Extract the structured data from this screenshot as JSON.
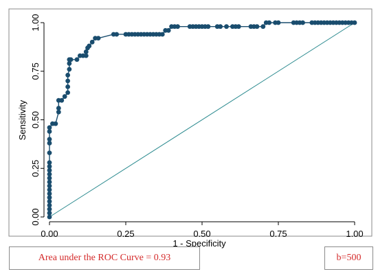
{
  "chart_data": {
    "type": "line",
    "title": "",
    "xlabel": "1 - Specificity",
    "ylabel": "Sensitivity",
    "xlim": [
      0,
      1
    ],
    "ylim": [
      0,
      1
    ],
    "x_ticks": [
      "0.00",
      "0.25",
      "0.50",
      "0.75",
      "1.00"
    ],
    "y_ticks": [
      "0.00",
      "0.25",
      "0.50",
      "0.75",
      "1.00"
    ],
    "grid": false,
    "series": [
      {
        "color": "#1a4d6e",
        "x": [
          0,
          0,
          0,
          0,
          0,
          0,
          0,
          0,
          0,
          0,
          0,
          0,
          0,
          0,
          0,
          0,
          0,
          0,
          0,
          0,
          0.01,
          0.02,
          0.03,
          0.03,
          0.03,
          0.04,
          0.05,
          0.06,
          0.06,
          0.06,
          0.06,
          0.065,
          0.065,
          0.065,
          0.07,
          0.09,
          0.1,
          0.11,
          0.12,
          0.12,
          0.125,
          0.13,
          0.14,
          0.15,
          0.16,
          0.21,
          0.22,
          0.25,
          0.26,
          0.27,
          0.28,
          0.29,
          0.3,
          0.31,
          0.32,
          0.33,
          0.34,
          0.35,
          0.36,
          0.37,
          0.38,
          0.39,
          0.4,
          0.41,
          0.42,
          0.46,
          0.47,
          0.48,
          0.49,
          0.5,
          0.51,
          0.52,
          0.55,
          0.56,
          0.58,
          0.6,
          0.61,
          0.62,
          0.66,
          0.67,
          0.68,
          0.7,
          0.71,
          0.72,
          0.74,
          0.75,
          0.8,
          0.81,
          0.82,
          0.83,
          0.86,
          0.87,
          0.88,
          0.89,
          0.9,
          0.91,
          0.92,
          0.93,
          0.94,
          0.95,
          0.96,
          0.97,
          0.98,
          0.99,
          1.0
        ],
        "y": [
          0,
          0.02,
          0.04,
          0.06,
          0.08,
          0.1,
          0.12,
          0.14,
          0.16,
          0.18,
          0.2,
          0.22,
          0.24,
          0.26,
          0.28,
          0.33,
          0.38,
          0.4,
          0.44,
          0.46,
          0.48,
          0.48,
          0.54,
          0.56,
          0.6,
          0.6,
          0.62,
          0.64,
          0.67,
          0.7,
          0.73,
          0.76,
          0.79,
          0.81,
          0.81,
          0.81,
          0.83,
          0.83,
          0.83,
          0.85,
          0.87,
          0.88,
          0.9,
          0.92,
          0.92,
          0.94,
          0.94,
          0.94,
          0.94,
          0.94,
          0.94,
          0.94,
          0.94,
          0.94,
          0.94,
          0.94,
          0.94,
          0.94,
          0.94,
          0.94,
          0.96,
          0.96,
          0.98,
          0.98,
          0.98,
          0.98,
          0.98,
          0.98,
          0.98,
          0.98,
          0.98,
          0.98,
          0.98,
          0.98,
          0.98,
          0.98,
          0.98,
          0.98,
          0.98,
          0.98,
          0.98,
          0.98,
          1.0,
          1.0,
          1.0,
          1.0,
          1.0,
          1.0,
          1.0,
          1.0,
          1.0,
          1.0,
          1.0,
          1.0,
          1.0,
          1.0,
          1.0,
          1.0,
          1.0,
          1.0,
          1.0,
          1.0,
          1.0,
          1.0,
          1.0
        ]
      },
      {
        "color": "#2b8a8f",
        "x": [
          0,
          1
        ],
        "y": [
          0,
          1
        ]
      }
    ]
  },
  "annotations": {
    "auc_text": "Area under the ROC Curve = 0.93",
    "b_text": "b=500",
    "color": "#d42a2a"
  }
}
